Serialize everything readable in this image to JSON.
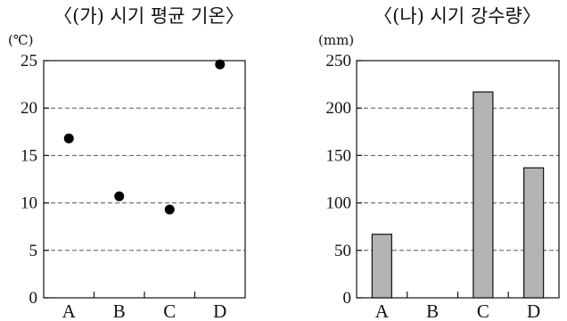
{
  "chart_data": [
    {
      "type": "scatter",
      "title": "〈(가) 시기 평균 기온〉",
      "unit": "(℃)",
      "categories": [
        "A",
        "B",
        "C",
        "D"
      ],
      "values": [
        16.8,
        10.7,
        9.3,
        24.6
      ],
      "yticks": [
        "0",
        "5",
        "10",
        "15",
        "20",
        "25"
      ],
      "ylim": [
        0,
        25
      ],
      "grid": "horizontal-dashed",
      "legend": "none"
    },
    {
      "type": "bar",
      "title": "〈(나) 시기 강수량〉",
      "unit": "(mm)",
      "categories": [
        "A",
        "B",
        "C",
        "D"
      ],
      "values": [
        67,
        0,
        217,
        137
      ],
      "yticks": [
        "0",
        "50",
        "100",
        "150",
        "200",
        "250"
      ],
      "ylim": [
        0,
        250
      ],
      "grid": "horizontal-dashed",
      "legend": "none",
      "colors": {
        "bar_fill": "#b3b3b3",
        "bar_stroke": "#111111"
      }
    }
  ]
}
